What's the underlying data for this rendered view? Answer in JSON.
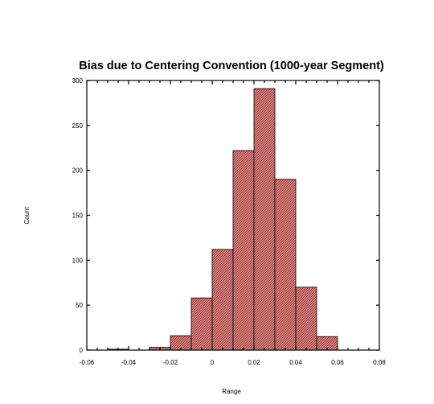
{
  "chart_data": {
    "type": "bar",
    "title": "Bias due to Centering Convention (1000-year Segment)",
    "xlabel": "Range",
    "ylabel": "Count",
    "xlim": [
      -0.06,
      0.08
    ],
    "ylim": [
      0,
      300
    ],
    "x_ticks": [
      "-0.06",
      "-0.04",
      "-0.02",
      "0",
      "0.02",
      "0.04",
      "0.06",
      "0.08"
    ],
    "y_ticks": [
      "0",
      "50",
      "100",
      "150",
      "200",
      "250",
      "300"
    ],
    "bin_width": 0.01,
    "bins": [
      {
        "x0": -0.05,
        "x1": -0.04,
        "count": 1
      },
      {
        "x0": -0.04,
        "x1": -0.03,
        "count": 0
      },
      {
        "x0": -0.03,
        "x1": -0.02,
        "count": 3
      },
      {
        "x0": -0.02,
        "x1": -0.01,
        "count": 16
      },
      {
        "x0": -0.01,
        "x1": 0.0,
        "count": 58
      },
      {
        "x0": 0.0,
        "x1": 0.01,
        "count": 112
      },
      {
        "x0": 0.01,
        "x1": 0.02,
        "count": 222
      },
      {
        "x0": 0.02,
        "x1": 0.03,
        "count": 291
      },
      {
        "x0": 0.03,
        "x1": 0.04,
        "count": 190
      },
      {
        "x0": 0.04,
        "x1": 0.05,
        "count": 70
      },
      {
        "x0": 0.05,
        "x1": 0.06,
        "count": 15
      },
      {
        "x0": 0.06,
        "x1": 0.07,
        "count": 0
      },
      {
        "x0": 0.07,
        "x1": 0.08,
        "count": 0
      }
    ],
    "bar_fill_color": "#c98a8a",
    "bar_hatch_color": "#a02020",
    "bar_edge_color": "#000000",
    "grid": false,
    "legend": "none"
  }
}
